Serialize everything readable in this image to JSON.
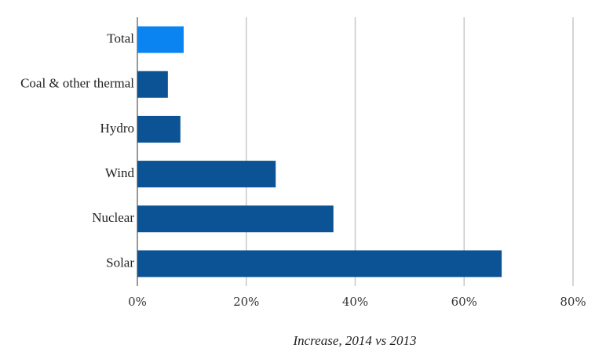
{
  "chart_data": {
    "type": "bar",
    "orientation": "horizontal",
    "x_label": "Increase, 2014 vs 2013",
    "categories": [
      "Total",
      "Coal & other thermal",
      "Hydro",
      "Wind",
      "Nuclear",
      "Solar"
    ],
    "values": [
      8.5,
      5.6,
      7.9,
      25.4,
      36.0,
      66.9
    ],
    "colors": [
      "#0a84f0",
      "#0b5394",
      "#0b5394",
      "#0b5394",
      "#0b5394",
      "#0b5394"
    ],
    "xlim": [
      0,
      80
    ],
    "xticks": [
      {
        "value": 0,
        "label": "0%"
      },
      {
        "value": 20,
        "label": "20%"
      },
      {
        "value": 40,
        "label": "40%"
      },
      {
        "value": 60,
        "label": "60%"
      },
      {
        "value": 80,
        "label": "80%"
      }
    ],
    "grid": true
  }
}
